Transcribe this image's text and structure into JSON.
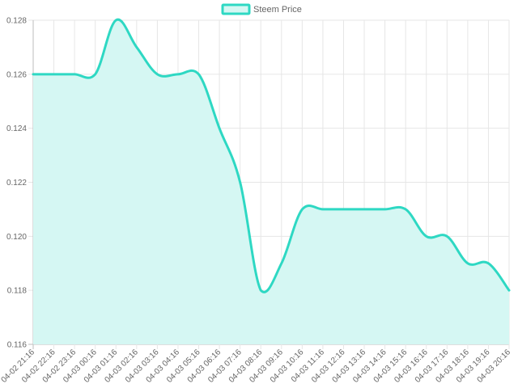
{
  "chart_data": {
    "type": "area",
    "title": "",
    "xlabel": "",
    "ylabel": "",
    "legend": {
      "position": "top-center",
      "entries": [
        "Steem Price"
      ]
    },
    "grid": true,
    "ylim": [
      0.116,
      0.128
    ],
    "y_ticks": [
      "0.116",
      "0.118",
      "0.120",
      "0.122",
      "0.124",
      "0.126",
      "0.128"
    ],
    "categories": [
      "04-02 21:16",
      "04-02 22:16",
      "04-02 23:16",
      "04-03 00:16",
      "04-03 01:16",
      "04-03 02:16",
      "04-03 03:16",
      "04-03 04:16",
      "04-03 05:16",
      "04-03 06:16",
      "04-03 07:16",
      "04-03 08:16",
      "04-03 09:16",
      "04-03 10:16",
      "04-03 11:16",
      "04-03 12:16",
      "04-03 13:16",
      "04-03 14:16",
      "04-03 15:16",
      "04-03 16:16",
      "04-03 17:16",
      "04-03 18:16",
      "04-03 19:16",
      "04-03 20:16"
    ],
    "series": [
      {
        "name": "Steem Price",
        "values": [
          0.126,
          0.126,
          0.126,
          0.126,
          0.128,
          0.127,
          0.126,
          0.126,
          0.126,
          0.124,
          0.122,
          0.118,
          0.119,
          0.121,
          0.121,
          0.121,
          0.121,
          0.121,
          0.121,
          0.12,
          0.12,
          0.119,
          0.119,
          0.118
        ],
        "line_color": "#2ed8c3",
        "fill_color": "#d5f7f3"
      }
    ]
  }
}
